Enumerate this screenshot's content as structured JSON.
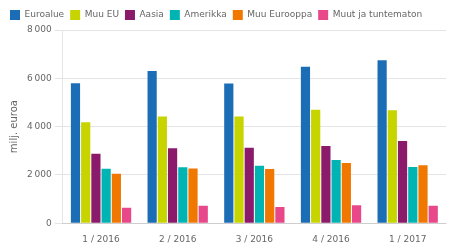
{
  "chart_data": {
    "type": "bar",
    "categories": [
      "1 / 2016",
      "2 / 2016",
      "3 / 2016",
      "4 / 2016",
      "1 / 2017"
    ],
    "series": [
      {
        "name": "Euroalue",
        "color": "#1b6eb5",
        "values": [
          5800,
          6300,
          5780,
          6480,
          6750
        ]
      },
      {
        "name": "Muu EU",
        "color": "#c8d400",
        "values": [
          4180,
          4420,
          4420,
          4700,
          4680
        ]
      },
      {
        "name": "Aasia",
        "color": "#8b1a6b",
        "values": [
          2880,
          3100,
          3120,
          3200,
          3400
        ]
      },
      {
        "name": "Amerikka",
        "color": "#00b4b4",
        "values": [
          2250,
          2320,
          2380,
          2620,
          2330
        ]
      },
      {
        "name": "Muu Eurooppa",
        "color": "#f07800",
        "values": [
          2050,
          2260,
          2240,
          2490,
          2400
        ]
      },
      {
        "name": "Muut ja tuntematon",
        "color": "#e8488a",
        "values": [
          640,
          720,
          670,
          740,
          720
        ]
      }
    ],
    "ylabel": "milj. euroa",
    "ylim": [
      0,
      8000
    ],
    "yticks": [
      0,
      {
        "value": 2000,
        "label": "2 000"
      },
      {
        "value": 4000,
        "label": "4 000"
      },
      {
        "value": 6000,
        "label": "6 000"
      },
      {
        "value": 8000,
        "label": "8 000"
      }
    ],
    "grid": true,
    "legend": "upper left"
  }
}
